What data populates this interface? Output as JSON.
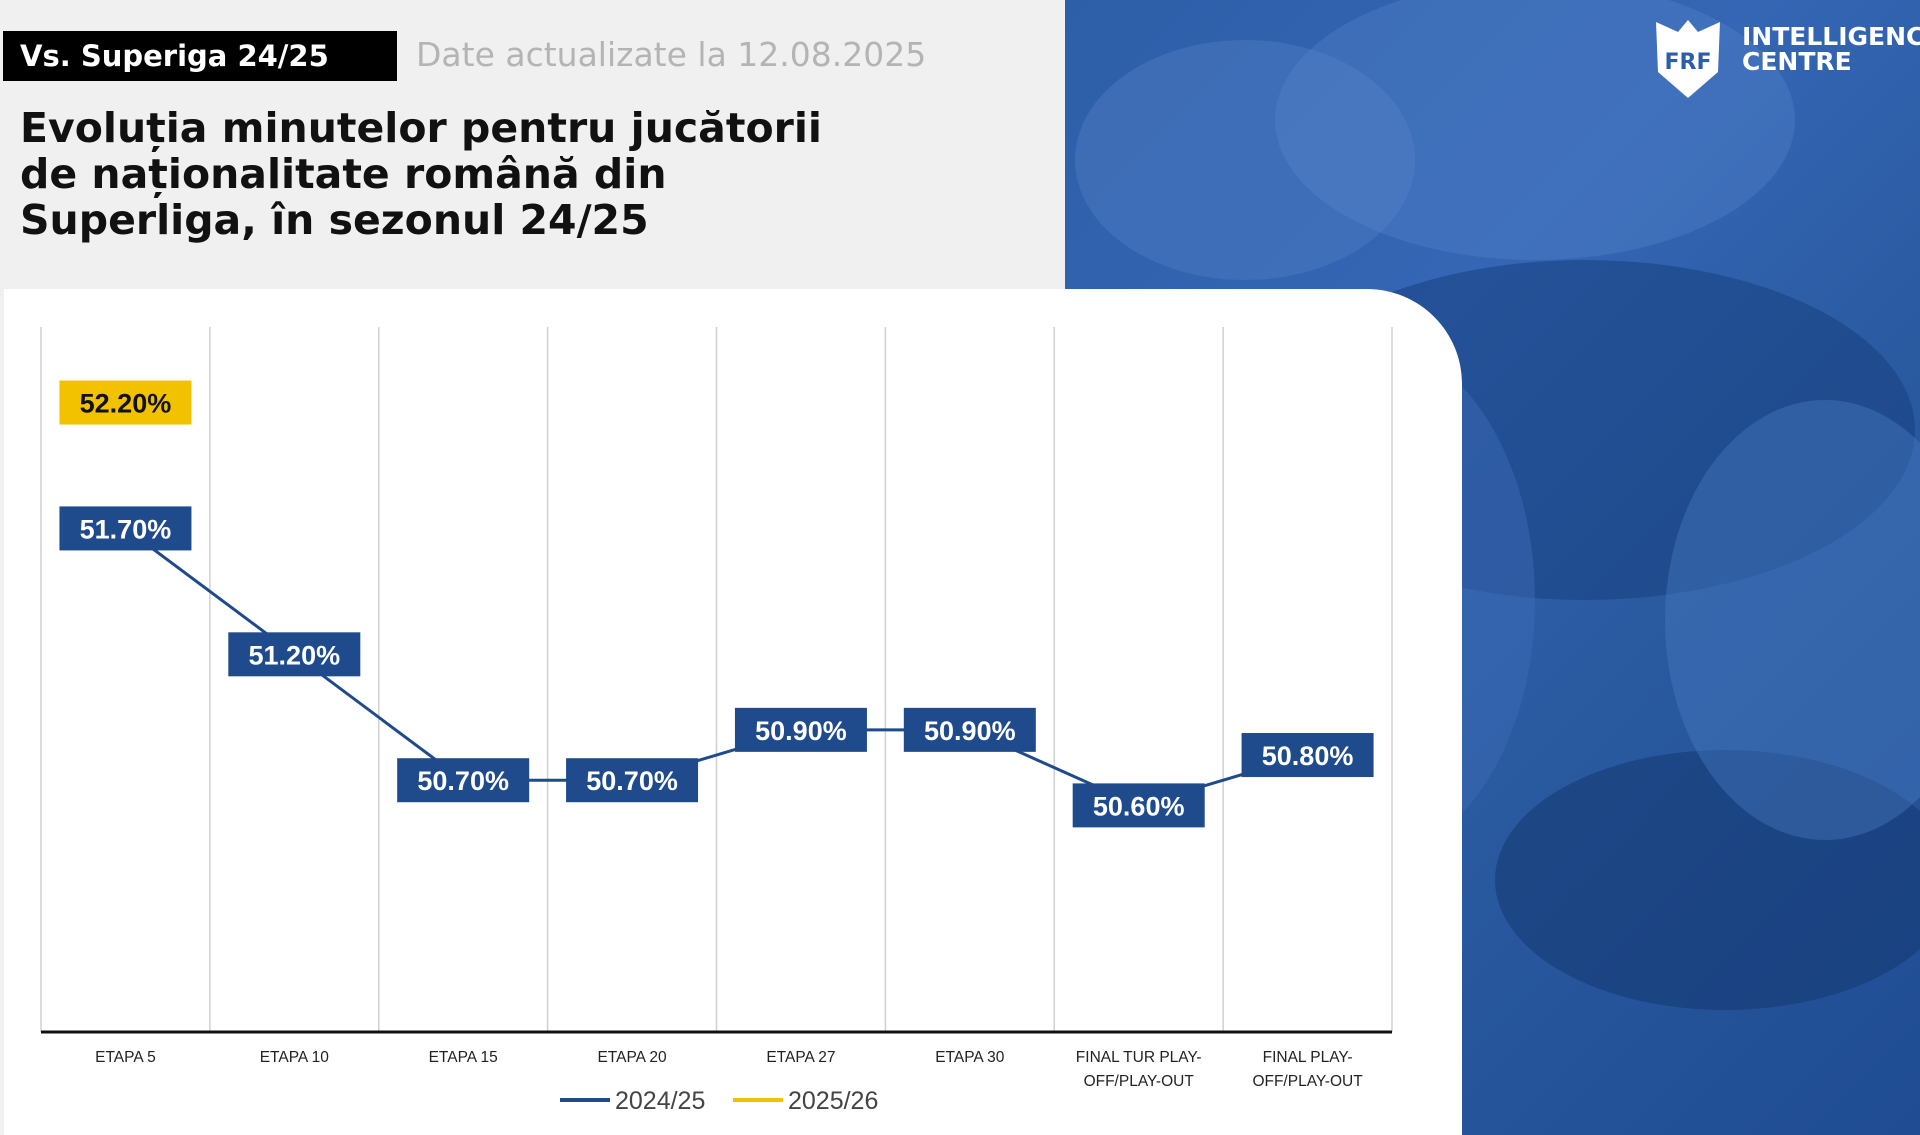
{
  "header": {
    "tag": "Vs. Superiga 24/25",
    "updated": "Date actualizate la 12.08.2025",
    "title": "Evoluția minutelor pentru jucătorii de naționalitate română din Superliga, în sezonul 24/25"
  },
  "logo": {
    "mark": "FRF",
    "line1": "INTELLIGENCE",
    "line2": "CENTRE"
  },
  "chart_data": {
    "type": "line",
    "categories": [
      "ETAPA 5",
      "ETAPA 10",
      "ETAPA 15",
      "ETAPA 20",
      "ETAPA 27",
      "ETAPA 30",
      "FINAL TUR PLAY-OFF/PLAY-OUT",
      "FINAL PLAY-OFF/PLAY-OUT"
    ],
    "category_label_lines": [
      [
        "ETAPA 5"
      ],
      [
        "ETAPA 10"
      ],
      [
        "ETAPA 15"
      ],
      [
        "ETAPA 20"
      ],
      [
        "ETAPA 27"
      ],
      [
        "ETAPA 30"
      ],
      [
        "FINAL TUR PLAY-",
        "OFF/PLAY-OUT"
      ],
      [
        "FINAL PLAY-",
        "OFF/PLAY-OUT"
      ]
    ],
    "series": [
      {
        "name": "2024/25",
        "color": "#1f4a8c",
        "values": [
          51.7,
          51.2,
          50.7,
          50.7,
          50.9,
          50.9,
          50.6,
          50.8
        ],
        "labels": [
          "51.70%",
          "51.20%",
          "50.70%",
          "50.70%",
          "50.90%",
          "50.90%",
          "50.60%",
          "50.80%"
        ]
      },
      {
        "name": "2025/26",
        "color": "#f2c200",
        "values": [
          52.2,
          null,
          null,
          null,
          null,
          null,
          null,
          null
        ],
        "labels": [
          "52.20%",
          "",
          "",
          "",
          "",
          "",
          "",
          ""
        ]
      }
    ],
    "ylim": [
      49.7,
      52.5
    ],
    "grid": "vertical",
    "legend": "bottom"
  }
}
